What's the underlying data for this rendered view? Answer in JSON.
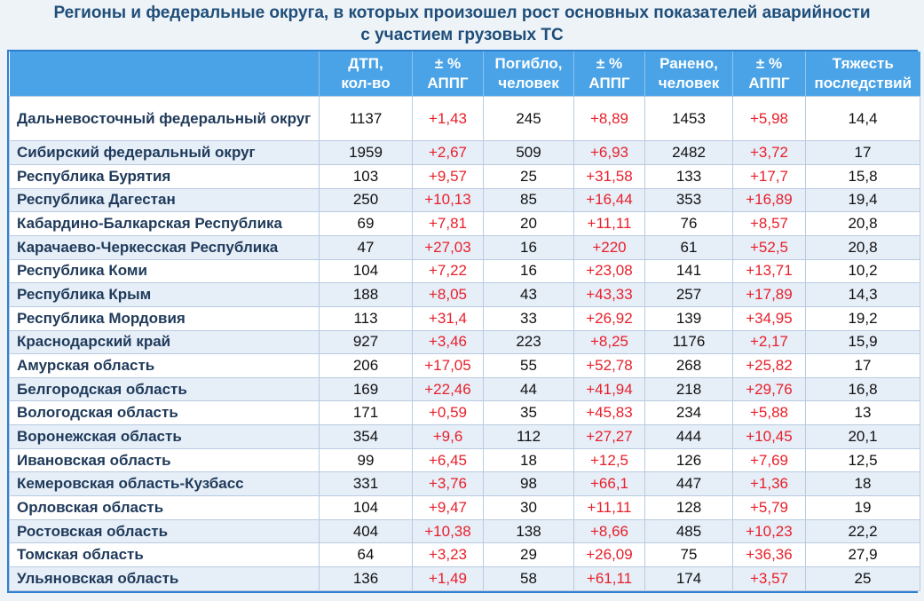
{
  "title": {
    "line1": "Регионы и федеральные округа, в которых произошел рост основных показателей аварийности",
    "line2": "с участием грузовых ТС"
  },
  "headers": [
    {
      "l1": "",
      "l2": ""
    },
    {
      "l1": "ДТП,",
      "l2": "кол-во"
    },
    {
      "l1": "± %",
      "l2": "АППГ"
    },
    {
      "l1": "Погибло,",
      "l2": "человек"
    },
    {
      "l1": "± %",
      "l2": "АППГ"
    },
    {
      "l1": "Ранено,",
      "l2": "человек"
    },
    {
      "l1": "± %",
      "l2": "АППГ"
    },
    {
      "l1": "Тяжесть",
      "l2": "последствий"
    }
  ],
  "rows": [
    {
      "region": "Дальневосточный федеральный округ",
      "dtp": "1137",
      "dtp_d": "+1,43",
      "died": "245",
      "died_d": "+8,89",
      "inj": "1453",
      "inj_d": "+5,98",
      "sev": "14,4"
    },
    {
      "region": "Сибирский федеральный округ",
      "dtp": "1959",
      "dtp_d": "+2,67",
      "died": "509",
      "died_d": "+6,93",
      "inj": "2482",
      "inj_d": "+3,72",
      "sev": "17"
    },
    {
      "region": "Республика Бурятия",
      "dtp": "103",
      "dtp_d": "+9,57",
      "died": "25",
      "died_d": "+31,58",
      "inj": "133",
      "inj_d": "+17,7",
      "sev": "15,8"
    },
    {
      "region": "Республика Дагестан",
      "dtp": "250",
      "dtp_d": "+10,13",
      "died": "85",
      "died_d": "+16,44",
      "inj": "353",
      "inj_d": "+16,89",
      "sev": "19,4"
    },
    {
      "region": "Кабардино-Балкарская Республика",
      "dtp": "69",
      "dtp_d": "+7,81",
      "died": "20",
      "died_d": "+11,11",
      "inj": "76",
      "inj_d": "+8,57",
      "sev": "20,8"
    },
    {
      "region": "Карачаево-Черкесская Республика",
      "dtp": "47",
      "dtp_d": "+27,03",
      "died": "16",
      "died_d": "+220",
      "inj": "61",
      "inj_d": "+52,5",
      "sev": "20,8"
    },
    {
      "region": "Республика Коми",
      "dtp": "104",
      "dtp_d": "+7,22",
      "died": "16",
      "died_d": "+23,08",
      "inj": "141",
      "inj_d": "+13,71",
      "sev": "10,2"
    },
    {
      "region": "Республика Крым",
      "dtp": "188",
      "dtp_d": "+8,05",
      "died": "43",
      "died_d": "+43,33",
      "inj": "257",
      "inj_d": "+17,89",
      "sev": "14,3"
    },
    {
      "region": "Республика Мордовия",
      "dtp": "113",
      "dtp_d": "+31,4",
      "died": "33",
      "died_d": "+26,92",
      "inj": "139",
      "inj_d": "+34,95",
      "sev": "19,2"
    },
    {
      "region": "Краснодарский край",
      "dtp": "927",
      "dtp_d": "+3,46",
      "died": "223",
      "died_d": "+8,25",
      "inj": "1176",
      "inj_d": "+2,17",
      "sev": "15,9"
    },
    {
      "region": "Амурская область",
      "dtp": "206",
      "dtp_d": "+17,05",
      "died": "55",
      "died_d": "+52,78",
      "inj": "268",
      "inj_d": "+25,82",
      "sev": "17"
    },
    {
      "region": "Белгородская область",
      "dtp": "169",
      "dtp_d": "+22,46",
      "died": "44",
      "died_d": "+41,94",
      "inj": "218",
      "inj_d": "+29,76",
      "sev": "16,8"
    },
    {
      "region": "Вологодская область",
      "dtp": "171",
      "dtp_d": "+0,59",
      "died": "35",
      "died_d": "+45,83",
      "inj": "234",
      "inj_d": "+5,88",
      "sev": "13"
    },
    {
      "region": "Воронежская область",
      "dtp": "354",
      "dtp_d": "+9,6",
      "died": "112",
      "died_d": "+27,27",
      "inj": "444",
      "inj_d": "+10,45",
      "sev": "20,1"
    },
    {
      "region": "Ивановская область",
      "dtp": "99",
      "dtp_d": "+6,45",
      "died": "18",
      "died_d": "+12,5",
      "inj": "126",
      "inj_d": "+7,69",
      "sev": "12,5"
    },
    {
      "region": "Кемеровская область-Кузбасс",
      "dtp": "331",
      "dtp_d": "+3,76",
      "died": "98",
      "died_d": "+66,1",
      "inj": "447",
      "inj_d": "+1,36",
      "sev": "18"
    },
    {
      "region": "Орловская область",
      "dtp": "104",
      "dtp_d": "+9,47",
      "died": "30",
      "died_d": "+11,11",
      "inj": "128",
      "inj_d": "+5,79",
      "sev": "19"
    },
    {
      "region": "Ростовская область",
      "dtp": "404",
      "dtp_d": "+10,38",
      "died": "138",
      "died_d": "+8,66",
      "inj": "485",
      "inj_d": "+10,23",
      "sev": "22,2"
    },
    {
      "region": "Томская область",
      "dtp": "64",
      "dtp_d": "+3,23",
      "died": "29",
      "died_d": "+26,09",
      "inj": "75",
      "inj_d": "+36,36",
      "sev": "27,9"
    },
    {
      "region": "Ульяновская область",
      "dtp": "136",
      "dtp_d": "+1,49",
      "died": "58",
      "died_d": "+61,11",
      "inj": "174",
      "inj_d": "+3,57",
      "sev": "25"
    }
  ]
}
